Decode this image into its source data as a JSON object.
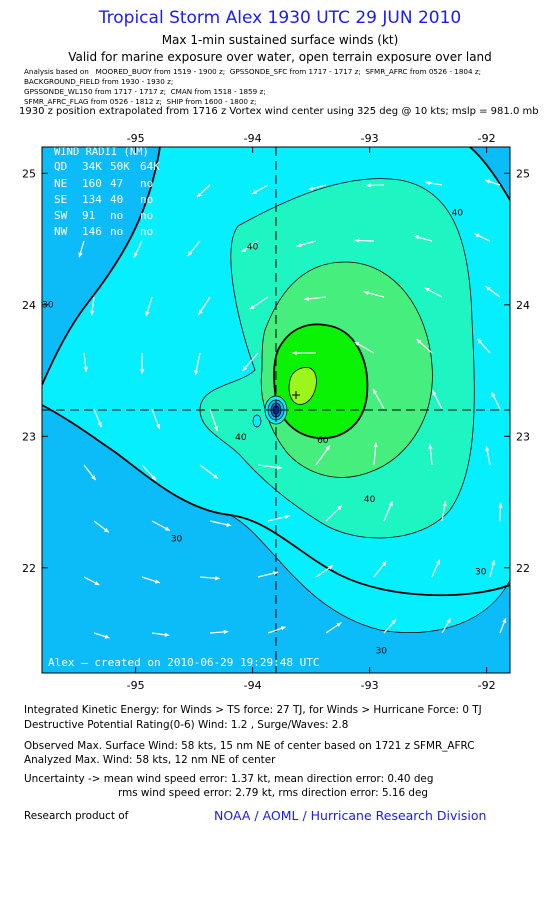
{
  "header": {
    "title": "Tropical Storm Alex 1930 UTC 29 JUN 2010",
    "subtitle1": "Max 1-min sustained surface winds (kt)",
    "subtitle2": "Valid for marine exposure over water, open terrain exposure over land",
    "analysis_lines": [
      "Analysis based on   MOORED_BUOY from 1519 - 1900 z;  GPSSONDE_SFC from 1717 - 1717 z;  SFMR_AFRC from 0526 - 1804 z;",
      "BACKGROUND_FIELD from 1930 - 1930 z;",
      "GPSSONDE_WL150 from 1717 - 1717 z;  CMAN from 1518 - 1859 z;",
      "SFMR_AFRC_FLAG from 0526 - 1812 z;  SHIP from 1600 - 1800 z;"
    ],
    "position_line": "1930 z position extrapolated from 1716 z Vortex wind center using 325 deg @ 10 kts; mslp = 981.0 mb"
  },
  "chart_data": {
    "type": "contour",
    "xlabel": "",
    "ylabel": "",
    "xlim": [
      -95.8,
      -91.8
    ],
    "ylim": [
      21.2,
      25.2
    ],
    "xticks": [
      -95,
      -94,
      -93,
      -92
    ],
    "xtick_labels": [
      "-95",
      "-94",
      "-93",
      "-92"
    ],
    "yticks": [
      22,
      23,
      24,
      25
    ],
    "ytick_labels": [
      "22",
      "23",
      "24",
      "25"
    ],
    "storm_center": {
      "lon": -93.7,
      "lat": 23.15
    },
    "max_wind_location": {
      "lon": -93.52,
      "lat": 23.23
    },
    "contour_labels": [
      {
        "text": "40",
        "lon": -92.25,
        "lat": 24.68
      },
      {
        "text": "40",
        "lon": -94.0,
        "lat": 24.42
      },
      {
        "text": "40",
        "lon": -94.1,
        "lat": 22.97
      },
      {
        "text": "40",
        "lon": -93.0,
        "lat": 22.5
      },
      {
        "text": "30",
        "lon": -95.75,
        "lat": 23.98
      },
      {
        "text": "30",
        "lon": -94.65,
        "lat": 22.2
      },
      {
        "text": "30",
        "lon": -92.05,
        "lat": 21.95
      },
      {
        "text": "30",
        "lon": -92.9,
        "lat": 21.35
      },
      {
        "text": "60",
        "lon": -93.4,
        "lat": 22.95
      }
    ],
    "wind_radii": {
      "title": "WIND RADII (NM)",
      "header": [
        "QD",
        "34K",
        "50K",
        "64K"
      ],
      "rows": [
        [
          "NE",
          "160",
          "47",
          "no"
        ],
        [
          "SE",
          "134",
          "40",
          "no"
        ],
        [
          "SW",
          "91",
          "no",
          "no"
        ],
        [
          "NW",
          "146",
          "no",
          "no"
        ]
      ]
    },
    "footer_text": "Alex — created on 2010-06-29 19:29:48 UTC",
    "colors": {
      "below_30": "#0cbcf8",
      "c30_40": "#05efff",
      "c40_50": "#1df5c2",
      "c50_60": "#46ee7e",
      "c60_65": "#0af305",
      "above_65": "#9cf61a",
      "contour": "#000000",
      "guide": "#000000"
    }
  },
  "ike": {
    "line1": "Integrated Kinetic Energy:  for Winds > TS force: 27 TJ,  for Winds > Hurricane Force: 0 TJ",
    "line2": "Destructive Potential Rating(0-6)   Wind: 1.2 , Surge/Waves: 2.8"
  },
  "observed": {
    "line1": "Observed Max. Surface Wind: 58 kts, 15 nm NE of center based on 1721 z SFMR_AFRC",
    "line2": "Analyzed Max. Wind: 58 kts, 12 nm NE of center"
  },
  "uncertainty": {
    "line1": "Uncertainty -> mean wind speed error: 1.37 kt,   mean direction error: 0.40 deg",
    "line2": "rms wind speed error: 2.79 kt,   rms direction error: 5.16 deg"
  },
  "footer": {
    "research_label": "Research product of",
    "org": "NOAA / AOML / Hurricane Research Division"
  }
}
